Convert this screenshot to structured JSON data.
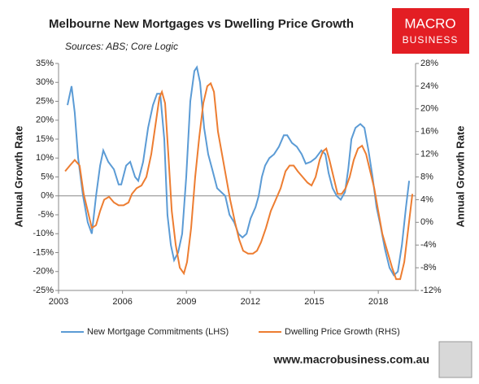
{
  "chart_data": {
    "type": "line",
    "title": "Melbourne New Mortgages vs Dwelling Price Growth",
    "subtitle": "Sources: ABS; Core Logic",
    "logo": [
      "MACRO",
      "BUSINESS"
    ],
    "footer": "www.macrobusiness.com.au",
    "ylabel": "Annual Growth Rate",
    "y2label": "Annual Growth Rate",
    "xlim": [
      2003,
      2019.75
    ],
    "xticks": [
      2003,
      2006,
      2009,
      2012,
      2015,
      2018
    ],
    "ylim": [
      -25,
      35
    ],
    "yticks": [
      {
        "value": -25,
        "label": "-25%"
      },
      {
        "value": -20,
        "label": "-20%"
      },
      {
        "value": -15,
        "label": "-15%"
      },
      {
        "value": -10,
        "label": "-10%"
      },
      {
        "value": -5,
        "label": "-5%"
      },
      {
        "value": 0,
        "label": "0%"
      },
      {
        "value": 5,
        "label": "5%"
      },
      {
        "value": 10,
        "label": "10%"
      },
      {
        "value": 15,
        "label": "15%"
      },
      {
        "value": 20,
        "label": "20%"
      },
      {
        "value": 25,
        "label": "25%"
      },
      {
        "value": 30,
        "label": "30%"
      },
      {
        "value": 35,
        "label": "35%"
      }
    ],
    "y2lim": [
      -12,
      28
    ],
    "y2ticks": [
      {
        "value": -12,
        "label": "-12%"
      },
      {
        "value": -8,
        "label": "-8%"
      },
      {
        "value": -4,
        "label": "-4%"
      },
      {
        "value": 0,
        "label": "0%"
      },
      {
        "value": 4,
        "label": "4%"
      },
      {
        "value": 8,
        "label": "8%"
      },
      {
        "value": 12,
        "label": "12%"
      },
      {
        "value": 16,
        "label": "16%"
      },
      {
        "value": 20,
        "label": "20%"
      },
      {
        "value": 24,
        "label": "24%"
      },
      {
        "value": 28,
        "label": "28%"
      }
    ],
    "legend": "bottom",
    "series": [
      {
        "name": "New Mortgage Commitments (LHS)",
        "color": "#5b9bd5",
        "axis": "y",
        "x": [
          2003.42,
          2003.61,
          2003.76,
          2003.92,
          2004.15,
          2004.37,
          2004.56,
          2004.76,
          2004.95,
          2005.1,
          2005.33,
          2005.6,
          2005.82,
          2005.94,
          2006.17,
          2006.36,
          2006.59,
          2006.74,
          2006.97,
          2007.2,
          2007.43,
          2007.62,
          2007.77,
          2007.96,
          2008.11,
          2008.27,
          2008.42,
          2008.61,
          2008.8,
          2008.99,
          2009.18,
          2009.37,
          2009.49,
          2009.64,
          2009.83,
          2010.02,
          2010.21,
          2010.44,
          2010.63,
          2010.82,
          2011.02,
          2011.24,
          2011.44,
          2011.63,
          2011.82,
          2012.01,
          2012.24,
          2012.39,
          2012.54,
          2012.69,
          2012.89,
          2013.11,
          2013.34,
          2013.57,
          2013.73,
          2013.95,
          2014.18,
          2014.41,
          2014.6,
          2014.83,
          2015.06,
          2015.33,
          2015.52,
          2015.67,
          2015.86,
          2016.05,
          2016.24,
          2016.44,
          2016.59,
          2016.74,
          2016.93,
          2017.16,
          2017.35,
          2017.54,
          2017.73,
          2017.92,
          2018.11,
          2018.31,
          2018.53,
          2018.73,
          2018.92,
          2019.11,
          2019.3,
          2019.45
        ],
        "values": [
          24,
          29,
          22,
          10,
          0,
          -7,
          -10,
          0,
          8,
          12,
          9,
          7,
          3,
          3,
          8,
          9,
          5,
          4,
          9,
          18,
          24,
          27,
          27,
          15,
          -5,
          -13,
          -17,
          -15,
          -10,
          5,
          25,
          33,
          34,
          30,
          18,
          11,
          7,
          2,
          1,
          0,
          -5,
          -7,
          -10,
          -11,
          -10,
          -6,
          -3,
          0,
          5,
          8,
          10,
          11,
          13,
          16,
          16,
          14,
          13,
          11,
          8.5,
          9,
          10,
          12,
          11,
          6,
          2,
          0,
          -1,
          1,
          7,
          15,
          18,
          19,
          18,
          12,
          5,
          -3,
          -8,
          -14,
          -19,
          -21,
          -20,
          -13,
          -3,
          4
        ]
      },
      {
        "name": "Dwelling Price Growth (RHS)",
        "color": "#ed7d31",
        "axis": "y2",
        "x": [
          2003.31,
          2003.53,
          2003.76,
          2003.99,
          2004.18,
          2004.37,
          2004.56,
          2004.76,
          2004.95,
          2005.14,
          2005.37,
          2005.6,
          2005.82,
          2006.05,
          2006.28,
          2006.44,
          2006.66,
          2006.89,
          2007.12,
          2007.35,
          2007.58,
          2007.73,
          2007.85,
          2008.0,
          2008.15,
          2008.31,
          2008.5,
          2008.69,
          2008.88,
          2009.03,
          2009.22,
          2009.41,
          2009.6,
          2009.79,
          2009.98,
          2010.14,
          2010.29,
          2010.48,
          2010.67,
          2010.86,
          2011.05,
          2011.28,
          2011.47,
          2011.66,
          2011.89,
          2012.12,
          2012.31,
          2012.5,
          2012.73,
          2012.96,
          2013.19,
          2013.42,
          2013.65,
          2013.84,
          2014.03,
          2014.22,
          2014.45,
          2014.68,
          2014.87,
          2015.06,
          2015.25,
          2015.4,
          2015.56,
          2015.71,
          2015.9,
          2016.09,
          2016.28,
          2016.47,
          2016.66,
          2016.85,
          2017.05,
          2017.24,
          2017.43,
          2017.62,
          2017.81,
          2018.0,
          2018.19,
          2018.42,
          2018.65,
          2018.84,
          2019.03,
          2019.22,
          2019.41,
          2019.6
        ],
        "values": [
          9,
          10,
          11,
          10,
          5,
          2,
          -1,
          -0.5,
          2,
          4,
          4.5,
          3.5,
          3,
          3,
          3.5,
          5,
          6,
          6.5,
          8,
          12,
          18,
          22,
          23,
          21,
          12,
          2,
          -4,
          -8,
          -9,
          -7,
          -1,
          8,
          15,
          21,
          24,
          24.5,
          23,
          16,
          12,
          8,
          4,
          0,
          -3,
          -5,
          -5.5,
          -5.5,
          -5,
          -3.5,
          -1,
          2,
          4,
          6,
          9,
          10,
          10,
          9,
          8,
          7,
          6.5,
          8,
          11,
          12.5,
          13,
          11,
          8,
          5,
          5,
          6,
          8,
          11,
          13,
          13.5,
          12,
          9,
          6,
          2,
          -2,
          -5,
          -8,
          -10,
          -10,
          -7,
          -1,
          5
        ]
      }
    ]
  }
}
